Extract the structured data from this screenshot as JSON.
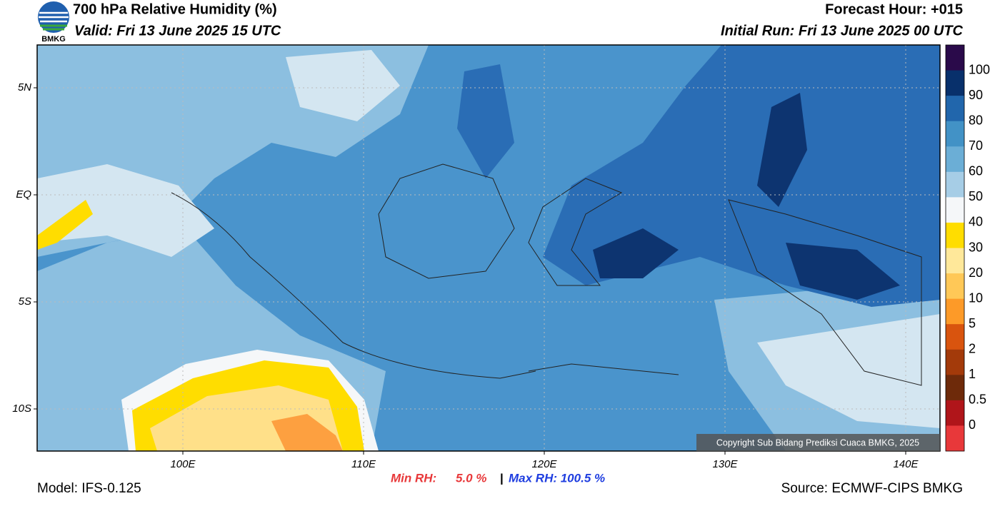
{
  "header": {
    "title": "700 hPa Relative Humidity (%)",
    "valid": "Valid: Fri 13 June 2025 15 UTC",
    "forecast_hour": "Forecast Hour: +015",
    "initial_run": "Initial Run: Fri 13 June 2025 00 UTC",
    "logo_text": "BMKG"
  },
  "map": {
    "lat_labels": [
      "5N",
      "EQ",
      "5S",
      "10S"
    ],
    "lon_labels": [
      "100E",
      "110E",
      "120E",
      "130E",
      "140E"
    ],
    "copyright": "Copyright Sub Bidang Prediksi Cuaca BMKG, 2025"
  },
  "colorbar": {
    "labels": [
      "100",
      "90",
      "80",
      "70",
      "60",
      "50",
      "40",
      "30",
      "20",
      "10",
      "5",
      "2",
      "1",
      "0.5",
      "0"
    ],
    "colors": [
      "#2a0a4a",
      "#08306b",
      "#2166ac",
      "#4292c6",
      "#6baed6",
      "#a6cde6",
      "#f5f7f9",
      "#ffdd00",
      "#ffe89a",
      "#ffc857",
      "#fd9a28",
      "#d9540e",
      "#a33a0a",
      "#6e2a0a",
      "#b0151a",
      "#e8383a"
    ]
  },
  "footer": {
    "model": "Model: IFS-0.125",
    "min_rh_label": "Min RH:",
    "min_rh_value": "5.0 %",
    "separator": "|",
    "max_rh": "Max RH: 100.5 %",
    "source": "Source: ECMWF-CIPS BMKG"
  }
}
